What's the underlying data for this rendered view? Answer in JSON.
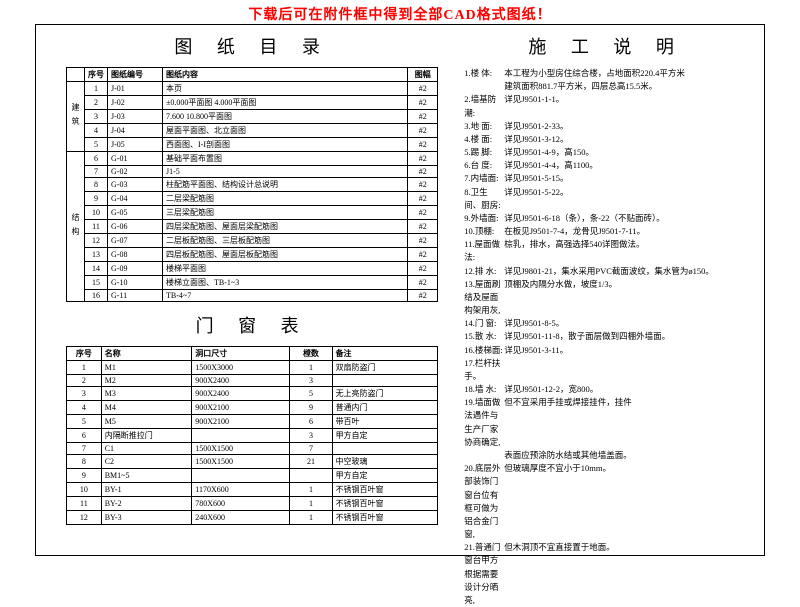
{
  "banner": "下载后可在附件框中得到全部CAD格式图纸！",
  "titles": {
    "catalog": "图 纸 目 录",
    "doorwin": "门 窗 表",
    "notes": "施 工 说 明"
  },
  "catalog": {
    "headers": {
      "seq": "序号",
      "code": "图纸编号",
      "content": "图纸内容",
      "fmt": "图幅"
    },
    "group1": {
      "label": "建筑"
    },
    "group2": {
      "label": "结构"
    },
    "rows1": [
      {
        "seq": "1",
        "code": "J-01",
        "content": "本页",
        "fmt": "#2"
      },
      {
        "seq": "2",
        "code": "J-02",
        "content": "±0.000平面图 4.000平面图",
        "fmt": "#2"
      },
      {
        "seq": "3",
        "code": "J-03",
        "content": "7.600 10.800平面图",
        "fmt": "#2"
      },
      {
        "seq": "4",
        "code": "J-04",
        "content": "屋面平面图、北立面图",
        "fmt": "#2"
      },
      {
        "seq": "5",
        "code": "J-05",
        "content": "西面图、I-I剖面图",
        "fmt": "#2"
      }
    ],
    "rows2": [
      {
        "seq": "6",
        "code": "G-01",
        "content": "基础平面布置图",
        "fmt": "#2"
      },
      {
        "seq": "7",
        "code": "G-02",
        "content": "J1-5",
        "fmt": "#2"
      },
      {
        "seq": "8",
        "code": "G-03",
        "content": "柱配筋平面图、结构设计总说明",
        "fmt": "#2"
      },
      {
        "seq": "9",
        "code": "G-04",
        "content": "二层梁配筋图",
        "fmt": "#2"
      },
      {
        "seq": "10",
        "code": "G-05",
        "content": "三层梁配筋图",
        "fmt": "#2"
      },
      {
        "seq": "11",
        "code": "G-06",
        "content": "四层梁配筋图、屋面层梁配筋图",
        "fmt": "#2"
      },
      {
        "seq": "12",
        "code": "G-07",
        "content": "二层板配筋图、三层板配筋图",
        "fmt": "#2"
      },
      {
        "seq": "13",
        "code": "G-08",
        "content": "四层板配筋图、屋面层板配筋图",
        "fmt": "#2"
      },
      {
        "seq": "14",
        "code": "G-09",
        "content": "楼梯平面图",
        "fmt": "#2"
      },
      {
        "seq": "15",
        "code": "G-10",
        "content": "楼梯立面图、TB-1~3",
        "fmt": "#2"
      },
      {
        "seq": "16",
        "code": "G-11",
        "content": "TB-4~7",
        "fmt": "#2"
      }
    ]
  },
  "doorwin": {
    "headers": {
      "seq": "序号",
      "name": "名称",
      "size": "洞口尺寸",
      "qty": "樘数",
      "note": "备注"
    },
    "rows": [
      {
        "seq": "1",
        "name": "M1",
        "size": "1500X3000",
        "qty": "1",
        "note": "双扇防盗门"
      },
      {
        "seq": "2",
        "name": "M2",
        "size": "900X2400",
        "qty": "3",
        "note": ""
      },
      {
        "seq": "3",
        "name": "M3",
        "size": "900X2400",
        "qty": "5",
        "note": "无上亮防盗门"
      },
      {
        "seq": "4",
        "name": "M4",
        "size": "900X2100",
        "qty": "9",
        "note": "普通内门"
      },
      {
        "seq": "5",
        "name": "M5",
        "size": "900X2100",
        "qty": "6",
        "note": "带百叶"
      },
      {
        "seq": "6",
        "name": "内隔断推拉门",
        "size": "",
        "qty": "3",
        "note": "甲方自定"
      },
      {
        "seq": "7",
        "name": "C1",
        "size": "1500X1500",
        "qty": "7",
        "note": ""
      },
      {
        "seq": "8",
        "name": "C2",
        "size": "1500X1500",
        "qty": "21",
        "note": "中空玻璃"
      },
      {
        "seq": "9",
        "name": "BM1~5",
        "size": "",
        "qty": "",
        "note": "甲方自定"
      },
      {
        "seq": "10",
        "name": "BY-1",
        "size": "1170X600",
        "qty": "1",
        "note": "不锈钢百叶窗"
      },
      {
        "seq": "11",
        "name": "BY-2",
        "size": "780X600",
        "qty": "1",
        "note": "不锈钢百叶窗"
      },
      {
        "seq": "12",
        "name": "BY-3",
        "size": "240X600",
        "qty": "1",
        "note": "不锈钢百叶窗"
      }
    ]
  },
  "notes": {
    "items": [
      {
        "idx": "1.楼    体:",
        "txt": "本工程为小型房住综合楼，占地面积220.4平方米"
      },
      {
        "idx": "",
        "txt": "建筑面积881.7平方米，四层总高15.5米。"
      },
      {
        "idx": "2.墙基防潮:",
        "txt": "详见J9501-1-1。"
      },
      {
        "idx": "3.地    面:",
        "txt": "详见J9501-2-33。"
      },
      {
        "idx": "4.楼    面:",
        "txt": "详见J9501-3-12。"
      },
      {
        "idx": "5.踢    脚:",
        "txt": "详见J9501-4-9，高150。"
      },
      {
        "idx": "6.台    度:",
        "txt": "详见J9501-4-4，高1100。"
      },
      {
        "idx": "7.内墙面:",
        "txt": "详见J9501-5-15。"
      },
      {
        "idx": "8.卫生间、厨房:",
        "txt": "详见J9501-5-22。"
      },
      {
        "idx": "9.外墙面:",
        "txt": "详见J9501-6-18（条），条-22（不贴面砖）。"
      },
      {
        "idx": "10.顶棚:",
        "txt": "在板见J9501-7-4，龙骨见J9501-7-11。"
      },
      {
        "idx": "11.屋面做法:",
        "txt": "棕乳，排水，高强选择540详图做法。"
      },
      {
        "idx": "12.排    水:",
        "txt": "详见J9801-21，集水采用PVC截面波纹，集水管为ø150。"
      },
      {
        "idx": "13.屋面刷结及屋面构架用灰,",
        "txt": "顶棚及内隔分水做，坡度1/3。"
      },
      {
        "idx": "14.门    窗:",
        "txt": "详见J9501-8-5。"
      },
      {
        "idx": "15.散    水:",
        "txt": "详见J9501-11-8，散子面层做到四棚外墙面。"
      },
      {
        "idx": "16.楼梯面:",
        "txt": "详见J9501-3-11。"
      },
      {
        "idx": "17.栏杆扶手。",
        "txt": ""
      },
      {
        "idx": "18.墙    水:",
        "txt": "详见J9501-12-2，宽800。"
      },
      {
        "idx": "19.墙面做法遇件与生产厂家协商确定,",
        "txt": "但不宜采用手挂或焊接挂件，挂件"
      },
      {
        "idx": "",
        "txt": "表面应预涂防水结或其他墙盖面。"
      },
      {
        "idx": "20.底层外部装饰门窗台位有框可做为铝合金门窗,",
        "txt": "但玻璃厚度不宜小于10mm。"
      },
      {
        "idx": "21.普通门窗台甲方根据需要设计分晒亮,",
        "txt": "但木洞顶不宜直接置于地面。"
      }
    ]
  }
}
